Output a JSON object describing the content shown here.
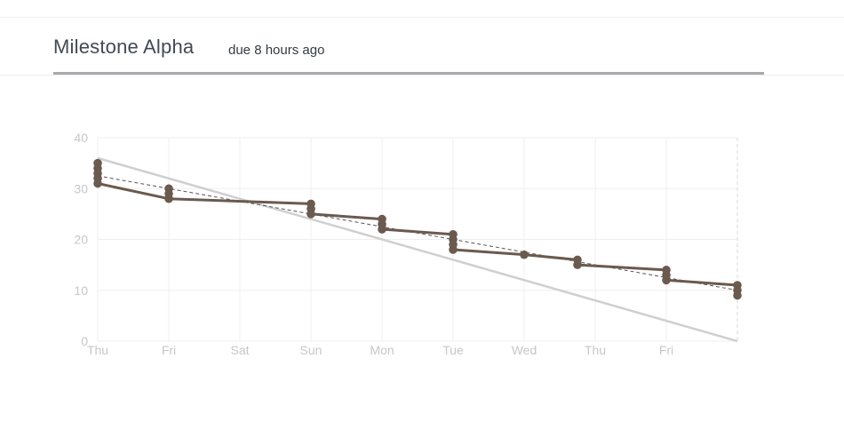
{
  "header": {
    "title": "Milestone Alpha",
    "due": "due 8 hours ago"
  },
  "colors": {
    "actual": "#6b5a4e",
    "ideal": "#cfcfcf",
    "trend": "#555555",
    "grid": "#efefef",
    "tick": "#c7c7c7",
    "underline": "#a9a9ae"
  },
  "chart_data": {
    "type": "line",
    "title": "",
    "xlabel": "",
    "ylabel": "",
    "ylim": [
      0,
      40
    ],
    "xlim": [
      0,
      9
    ],
    "y_ticks": [
      "0",
      "10",
      "20",
      "30",
      "40"
    ],
    "x_ticks": [
      "Thu",
      "Fri",
      "Sat",
      "Sun",
      "Mon",
      "Tue",
      "Wed",
      "Thu",
      "Fri"
    ],
    "grid": true,
    "series": [
      {
        "style": "ideal",
        "points": [
          [
            0,
            36
          ],
          [
            9,
            0
          ]
        ]
      },
      {
        "style": "trend",
        "points": [
          [
            0,
            32.5
          ],
          [
            9,
            10
          ]
        ]
      },
      {
        "style": "actual",
        "points": [
          [
            0,
            31
          ],
          [
            1,
            28
          ],
          [
            3,
            27
          ],
          [
            3,
            25
          ],
          [
            4,
            24
          ],
          [
            4,
            22
          ],
          [
            5,
            21
          ],
          [
            5,
            18
          ],
          [
            6,
            17
          ],
          [
            6.75,
            16
          ],
          [
            6.75,
            15
          ],
          [
            8,
            14
          ],
          [
            8,
            12
          ],
          [
            9,
            11
          ],
          [
            9,
            9
          ]
        ]
      }
    ],
    "markers": [
      [
        0,
        35
      ],
      [
        0,
        34
      ],
      [
        0,
        33
      ],
      [
        0,
        32
      ],
      [
        0,
        31
      ],
      [
        1,
        30
      ],
      [
        1,
        29
      ],
      [
        1,
        28
      ],
      [
        3,
        27
      ],
      [
        3,
        26
      ],
      [
        3,
        25
      ],
      [
        4,
        24
      ],
      [
        4,
        23
      ],
      [
        4,
        22
      ],
      [
        5,
        21
      ],
      [
        5,
        20
      ],
      [
        5,
        19
      ],
      [
        5,
        18
      ],
      [
        6,
        17
      ],
      [
        6.75,
        16
      ],
      [
        6.75,
        15
      ],
      [
        8,
        14
      ],
      [
        8,
        13
      ],
      [
        8,
        12
      ],
      [
        9,
        11
      ],
      [
        9,
        10
      ],
      [
        9,
        9
      ]
    ]
  }
}
